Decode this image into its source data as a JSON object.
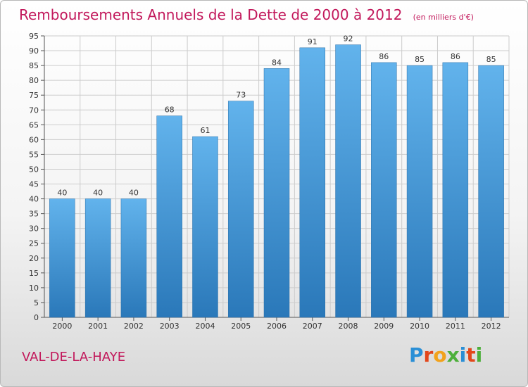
{
  "title": "Remboursements Annuels de la Dette de 2000 à 2012",
  "unit_note": "(en milliers d'€)",
  "commune": "VAL-DE-LA-HAYE",
  "logo": {
    "letters": [
      "P",
      "r",
      "o",
      "x",
      "i",
      "t",
      "i"
    ],
    "colors": [
      "#2a8fd6",
      "#e2471b",
      "#f2a21b",
      "#4caf3a",
      "#2a8fd6",
      "#e2471b",
      "#4caf3a"
    ]
  },
  "colors": {
    "bar_top": "#62b3ec",
    "bar_bottom": "#2a78b9",
    "grid": "#cccccc",
    "title": "#c2185b"
  },
  "chart_data": {
    "type": "bar",
    "title": "Remboursements Annuels de la Dette de 2000 à 2012",
    "categories": [
      "2000",
      "2001",
      "2002",
      "2003",
      "2004",
      "2005",
      "2006",
      "2007",
      "2008",
      "2009",
      "2010",
      "2011",
      "2012"
    ],
    "values": [
      40,
      40,
      40,
      68,
      61,
      73,
      84,
      91,
      92,
      86,
      85,
      86,
      85
    ],
    "ylim": [
      0,
      95
    ],
    "yticks": [
      0,
      5,
      10,
      15,
      20,
      25,
      30,
      35,
      40,
      45,
      50,
      55,
      60,
      65,
      70,
      75,
      80,
      85,
      90,
      95
    ],
    "grid": true,
    "legend": "none",
    "data_labels": true
  }
}
